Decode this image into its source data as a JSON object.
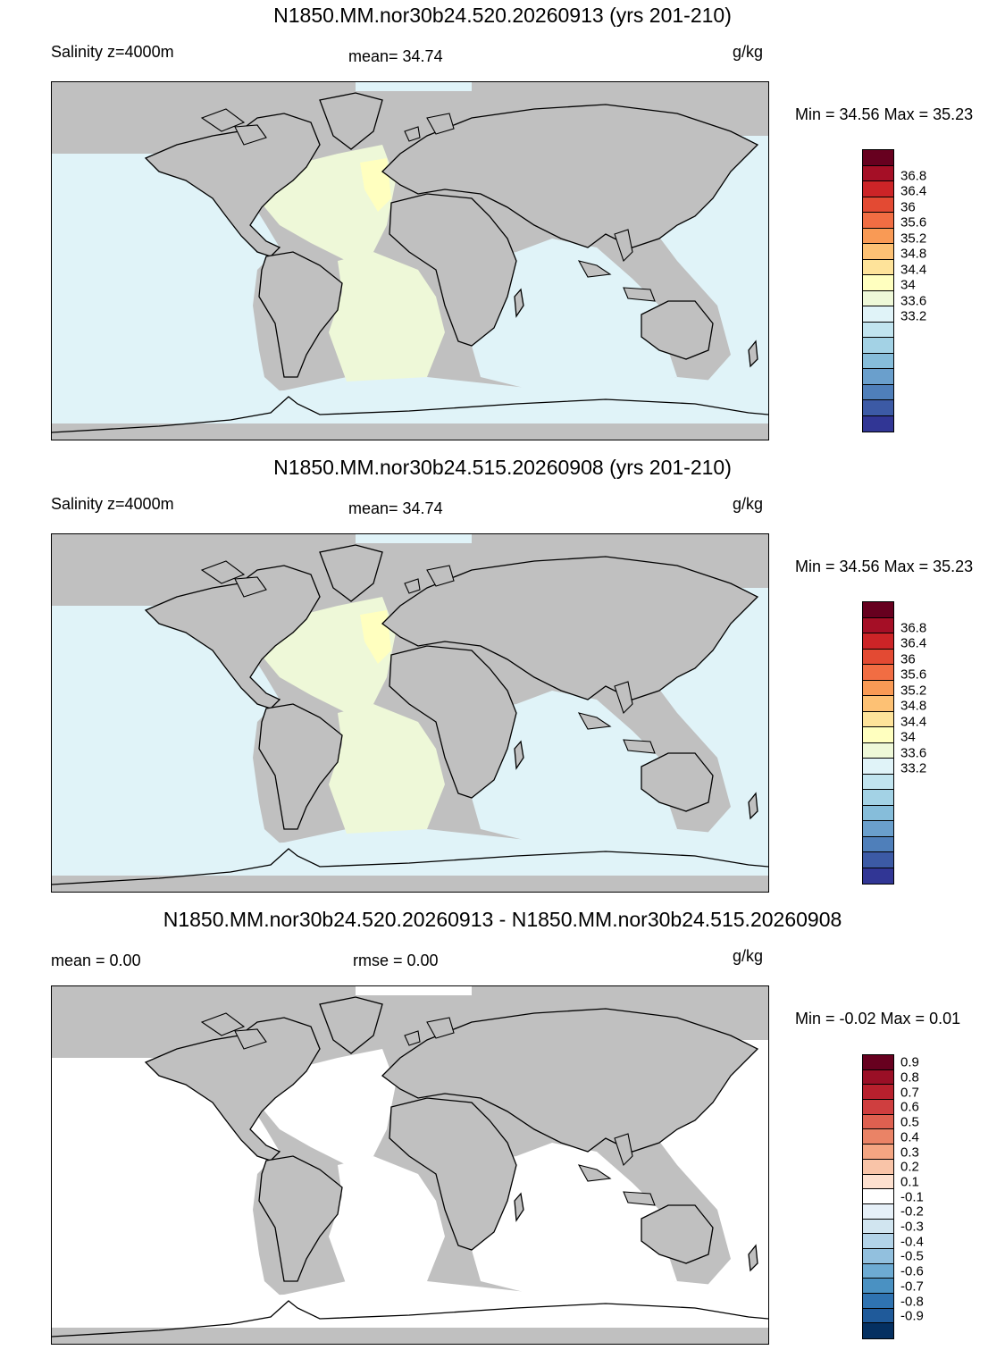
{
  "panels": [
    {
      "title": "N1850.MM.nor30b24.520.20260913 (yrs 201-210)",
      "left_label": "Salinity z=4000m",
      "center_label": "mean=  34.74",
      "units": "g/kg",
      "minmax": "Min =  34.56 Max =  35.23",
      "colorbar": {
        "colors": [
          "#67001f",
          "#a50f26",
          "#cc2427",
          "#e34a33",
          "#f16d43",
          "#f99a55",
          "#fdc174",
          "#fee39a",
          "#ffffbf",
          "#eef8d8",
          "#e0f3f8",
          "#c1e4ef",
          "#a3d2e5",
          "#86bdda",
          "#6a9fcc",
          "#4f7fba",
          "#3c5aa5",
          "#313695"
        ],
        "ticks": [
          "36.8",
          "36.4",
          "36",
          "35.6",
          "35.2",
          "34.8",
          "34.4",
          "34",
          "33.6",
          "33.2"
        ]
      }
    },
    {
      "title": "N1850.MM.nor30b24.515.20260908 (yrs 201-210)",
      "left_label": "Salinity z=4000m",
      "center_label": "mean=  34.74",
      "units": "g/kg",
      "minmax": "Min =  34.56 Max =  35.23",
      "colorbar": {
        "colors": [
          "#67001f",
          "#a50f26",
          "#cc2427",
          "#e34a33",
          "#f16d43",
          "#f99a55",
          "#fdc174",
          "#fee39a",
          "#ffffbf",
          "#eef8d8",
          "#e0f3f8",
          "#c1e4ef",
          "#a3d2e5",
          "#86bdda",
          "#6a9fcc",
          "#4f7fba",
          "#3c5aa5",
          "#313695"
        ],
        "ticks": [
          "36.8",
          "36.4",
          "36",
          "35.6",
          "35.2",
          "34.8",
          "34.4",
          "34",
          "33.6",
          "33.2"
        ]
      }
    },
    {
      "title": "N1850.MM.nor30b24.520.20260913 - N1850.MM.nor30b24.515.20260908",
      "left_label": "mean =    0.00",
      "center_label": "rmse =    0.00",
      "units": "g/kg",
      "minmax": "Min =  -0.02 Max =   0.01",
      "colorbar": {
        "colors": [
          "#67001f",
          "#9a0f26",
          "#b8202d",
          "#cf3e3f",
          "#de6050",
          "#ea8366",
          "#f4a582",
          "#f9c4a8",
          "#fde0cf",
          "#ffffff",
          "#e6f0f8",
          "#d1e5f0",
          "#b2d3e8",
          "#92c0de",
          "#6dabd3",
          "#4a91c2",
          "#2f73b1",
          "#1f5a9a",
          "#053061"
        ],
        "ticks": [
          "0.9",
          "0.8",
          "0.7",
          "0.6",
          "0.5",
          "0.4",
          "0.3",
          "0.2",
          "0.1",
          "-0.1",
          "-0.2",
          "-0.3",
          "-0.4",
          "-0.5",
          "-0.6",
          "-0.7",
          "-0.8",
          "-0.9"
        ]
      }
    }
  ],
  "colors": {
    "land": "#c0c0c0",
    "deep_ocean_fill": "#e0f3f8",
    "atlantic_fill": "#eef8d8",
    "high_salinity_fill": "#ffffbf",
    "difference_fill": "#ffffff"
  }
}
